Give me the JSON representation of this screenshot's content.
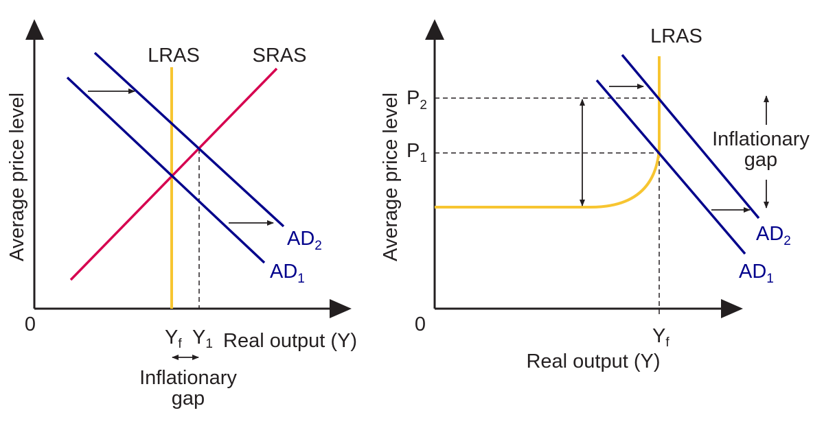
{
  "colors": {
    "axis": "#231f20",
    "ad": "#00008b",
    "sras": "#d6004f",
    "lras": "#f7c531"
  },
  "left_panel": {
    "origin": "0",
    "y_axis": "Average price level",
    "x_axis": "Real output (Y)",
    "lras": "LRAS",
    "sras": "SRAS",
    "ad1": {
      "main": "AD",
      "sub": "1"
    },
    "ad2": {
      "main": "AD",
      "sub": "2"
    },
    "yf": {
      "main": "Y",
      "sub": "f"
    },
    "y1": {
      "main": "Y",
      "sub": "1"
    },
    "gap_line1": "Inflationary",
    "gap_line2": "gap"
  },
  "right_panel": {
    "origin": "0",
    "y_axis": "Average price level",
    "x_axis": "Real output (Y)",
    "lras": "LRAS",
    "ad1": {
      "main": "AD",
      "sub": "1"
    },
    "ad2": {
      "main": "AD",
      "sub": "2"
    },
    "p1": {
      "main": "P",
      "sub": "1"
    },
    "p2": {
      "main": "P",
      "sub": "2"
    },
    "yf": {
      "main": "Y",
      "sub": "f"
    },
    "gap_line1": "Inflationary",
    "gap_line2": "gap"
  }
}
